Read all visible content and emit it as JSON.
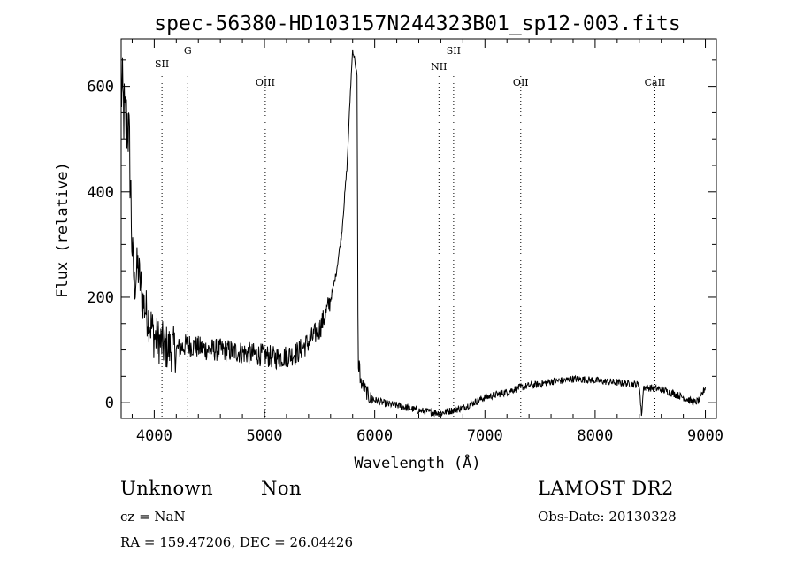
{
  "chart_data": {
    "type": "line",
    "title": "spec-56380-HD103157N244323B01_sp12-003.fits",
    "xlabel": "Wavelength (Å)",
    "ylabel": "Flux (relative)",
    "xlim": [
      3700,
      9100
    ],
    "ylim": [
      -30,
      690
    ],
    "grid": false,
    "xticks": [
      4000,
      5000,
      6000,
      7000,
      8000,
      9000
    ],
    "yticks": [
      0,
      200,
      400,
      600
    ],
    "series": [
      {
        "x": [
          3700,
          3720,
          3740,
          3760,
          3780,
          3800,
          3820,
          3850,
          3900,
          3950,
          4000,
          4100,
          4200,
          4300,
          4400,
          4500,
          4600,
          4700,
          4800,
          4900,
          5000,
          5100,
          5200,
          5300,
          5400,
          5500,
          5550,
          5600,
          5650,
          5700,
          5750,
          5780,
          5800,
          5820,
          5840,
          5850,
          5860,
          5870,
          5900,
          5950,
          6000,
          6100,
          6200,
          6300,
          6400,
          6500,
          6600,
          6700,
          6800,
          6900,
          7000,
          7100,
          7200,
          7300,
          7400,
          7500,
          7600,
          7700,
          7800,
          7900,
          8000,
          8100,
          8200,
          8300,
          8400,
          8420,
          8440,
          8460,
          8500,
          8600,
          8700,
          8800,
          8900,
          8950,
          9000
        ],
        "y": [
          600,
          560,
          520,
          540,
          450,
          290,
          220,
          260,
          190,
          160,
          125,
          105,
          100,
          110,
          105,
          100,
          100,
          98,
          95,
          92,
          90,
          85,
          88,
          95,
          115,
          140,
          165,
          195,
          245,
          320,
          450,
          590,
          670,
          650,
          620,
          50,
          80,
          40,
          30,
          10,
          5,
          -2,
          -5,
          -10,
          -15,
          -18,
          -20,
          -15,
          -10,
          0,
          10,
          15,
          20,
          28,
          32,
          35,
          40,
          42,
          45,
          44,
          42,
          40,
          38,
          36,
          34,
          -25,
          30,
          28,
          28,
          25,
          18,
          10,
          0,
          5,
          30
        ]
      }
    ],
    "lines": [
      {
        "label": "SII",
        "x": 4070
      },
      {
        "label": "G",
        "x": 4304
      },
      {
        "label": "OIII",
        "x": 5007
      },
      {
        "label": "NII",
        "x": 6583
      },
      {
        "label": "SII",
        "x": 6716
      },
      {
        "label": "OII",
        "x": 7325
      },
      {
        "label": "CaII",
        "x": 8542
      }
    ]
  },
  "info": {
    "class": "Unknown",
    "subclass": "Non",
    "survey": "LAMOST DR2",
    "cz": "cz = NaN",
    "obsdate": "Obs-Date: 20130328",
    "radec": "RA = 159.47206, DEC =  26.04426"
  },
  "colors": {
    "line": "#000000",
    "background": "#ffffff"
  }
}
